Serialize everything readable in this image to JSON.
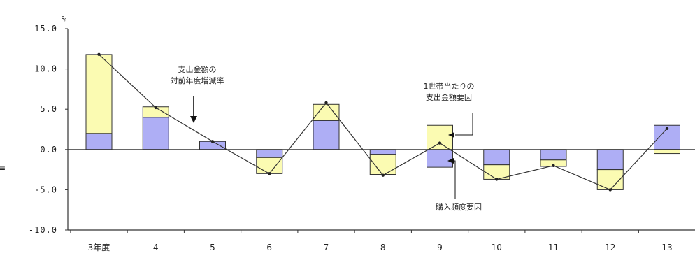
{
  "chart_data": {
    "type": "bar",
    "unit_label": "%",
    "ylim": [
      -10,
      15
    ],
    "yticks": [
      "15.0",
      "10.0",
      "5.0",
      "0.0",
      "-5.0",
      "-10.0"
    ],
    "categories": [
      "3年度",
      "4",
      "5",
      "6",
      "7",
      "8",
      "9",
      "10",
      "11",
      "12",
      "13"
    ],
    "series": [
      {
        "type": "bar",
        "stacked": true,
        "color": "#aeaef5",
        "values": [
          2.0,
          4.0,
          1.0,
          -1.0,
          3.6,
          -0.6,
          -2.2,
          -1.9,
          -1.3,
          -2.5,
          3.0
        ]
      },
      {
        "type": "bar",
        "stacked": true,
        "color": "#fbfbb2",
        "values": [
          9.8,
          1.3,
          0.0,
          -2.0,
          2.0,
          -2.5,
          3.0,
          -1.8,
          -0.8,
          -2.5,
          -0.5
        ]
      },
      {
        "type": "line",
        "color": "#333333",
        "values": [
          11.8,
          5.2,
          1.0,
          -3.0,
          5.8,
          -3.2,
          0.8,
          -3.7,
          -2.0,
          -5.0,
          2.6
        ]
      }
    ],
    "annotations": [
      {
        "lines": [
          "支出金額の",
          "対前年度増減率"
        ],
        "target": "line"
      },
      {
        "lines": [
          "1世帯当たりの",
          "支出金額要因"
        ],
        "target": "bar_yellow"
      },
      {
        "lines": [
          "購入頻度要因"
        ],
        "target": "bar_blue"
      }
    ],
    "grid": false,
    "legend": "none"
  },
  "side_glyph": "≡"
}
